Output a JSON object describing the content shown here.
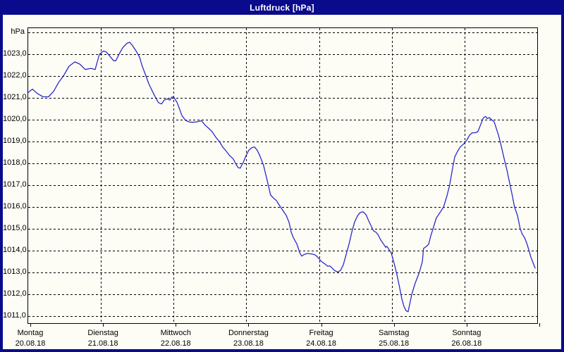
{
  "window": {
    "title": "Luftdruck [hPa]",
    "title_bar_color": "#0a0a8c",
    "frame_color": "#0a0a8c",
    "background_color": "#fdfdf6"
  },
  "chart_data": {
    "type": "line",
    "title": "Luftdruck [hPa]",
    "grid": "dashed",
    "legend_position": "none",
    "line_color": "#2a2ac8",
    "y_axis": {
      "unit_label": "hPa",
      "min": 1010.6,
      "max": 1024.2,
      "grid_step": 1,
      "ticks": [
        {
          "value": 1024,
          "label": "hPa"
        },
        {
          "value": 1023,
          "label": "1023,0"
        },
        {
          "value": 1022,
          "label": "1022,0"
        },
        {
          "value": 1021,
          "label": "1021,0"
        },
        {
          "value": 1020,
          "label": "1020,0"
        },
        {
          "value": 1019,
          "label": "1019,0"
        },
        {
          "value": 1018,
          "label": "1018,0"
        },
        {
          "value": 1017,
          "label": "1017,0"
        },
        {
          "value": 1016,
          "label": "1016,0"
        },
        {
          "value": 1015,
          "label": "1015,0"
        },
        {
          "value": 1014,
          "label": "1014,0"
        },
        {
          "value": 1013,
          "label": "1013,0"
        },
        {
          "value": 1012,
          "label": "1012,0"
        },
        {
          "value": 1011,
          "label": "1011,0"
        }
      ]
    },
    "x_axis": {
      "hours_total": 168,
      "days": [
        {
          "name": "Montag",
          "date": "20.08.18"
        },
        {
          "name": "Dienstag",
          "date": "21.08.18"
        },
        {
          "name": "Mittwoch",
          "date": "22.08.18"
        },
        {
          "name": "Donnerstag",
          "date": "23.08.18"
        },
        {
          "name": "Freitag",
          "date": "24.08.18"
        },
        {
          "name": "Samstag",
          "date": "25.08.18"
        },
        {
          "name": "Sonntag",
          "date": "26.08.18"
        }
      ]
    },
    "series": [
      {
        "name": "Luftdruck",
        "unit": "hPa",
        "points_format": [
          "hours_since_monday_00",
          "pressure_hpa"
        ],
        "points": [
          [
            0,
            1021.25
          ],
          [
            1.4,
            1021.4
          ],
          [
            3,
            1021.2
          ],
          [
            4.9,
            1021.05
          ],
          [
            6.7,
            1021.05
          ],
          [
            8.4,
            1021.3
          ],
          [
            10,
            1021.7
          ],
          [
            11.6,
            1022.0
          ],
          [
            13.5,
            1022.45
          ],
          [
            15.4,
            1022.65
          ],
          [
            17,
            1022.55
          ],
          [
            18.8,
            1022.3
          ],
          [
            20.7,
            1022.35
          ],
          [
            22.1,
            1022.3
          ],
          [
            23.5,
            1023.0
          ],
          [
            24.9,
            1023.15
          ],
          [
            25.8,
            1023.1
          ],
          [
            27,
            1022.9
          ],
          [
            28.2,
            1022.7
          ],
          [
            28.9,
            1022.7
          ],
          [
            30,
            1023.0
          ],
          [
            31.2,
            1023.3
          ],
          [
            32.6,
            1023.5
          ],
          [
            33.5,
            1023.55
          ],
          [
            34.4,
            1023.4
          ],
          [
            35.6,
            1023.15
          ],
          [
            36.8,
            1022.85
          ],
          [
            37.5,
            1022.5
          ],
          [
            38.6,
            1022.1
          ],
          [
            39.8,
            1021.65
          ],
          [
            41,
            1021.3
          ],
          [
            42.1,
            1021.0
          ],
          [
            43,
            1020.78
          ],
          [
            44,
            1020.72
          ],
          [
            44.9,
            1020.9
          ],
          [
            45.8,
            1020.95
          ],
          [
            46.8,
            1020.9
          ],
          [
            47.5,
            1021.05
          ],
          [
            48.2,
            1021.0
          ],
          [
            49.1,
            1020.8
          ],
          [
            49.8,
            1020.55
          ],
          [
            50.7,
            1020.2
          ],
          [
            51.9,
            1019.97
          ],
          [
            53.1,
            1019.9
          ],
          [
            54.2,
            1019.88
          ],
          [
            55.6,
            1019.9
          ],
          [
            57.2,
            1019.95
          ],
          [
            58.4,
            1019.75
          ],
          [
            59.6,
            1019.6
          ],
          [
            60.7,
            1019.45
          ],
          [
            61.9,
            1019.2
          ],
          [
            63.1,
            1019.0
          ],
          [
            64.2,
            1018.75
          ],
          [
            65.4,
            1018.55
          ],
          [
            66.5,
            1018.35
          ],
          [
            67.7,
            1018.2
          ],
          [
            68.6,
            1017.95
          ],
          [
            69.3,
            1017.8
          ],
          [
            70,
            1017.78
          ],
          [
            71,
            1018.05
          ],
          [
            71.9,
            1018.35
          ],
          [
            72.8,
            1018.6
          ],
          [
            73.8,
            1018.72
          ],
          [
            74.7,
            1018.75
          ],
          [
            75.6,
            1018.6
          ],
          [
            76.6,
            1018.3
          ],
          [
            77.7,
            1017.9
          ],
          [
            78.9,
            1017.2
          ],
          [
            80,
            1016.55
          ],
          [
            81,
            1016.4
          ],
          [
            81.9,
            1016.3
          ],
          [
            82.8,
            1016.1
          ],
          [
            84,
            1015.85
          ],
          [
            85.2,
            1015.6
          ],
          [
            86.1,
            1015.3
          ],
          [
            86.8,
            1014.85
          ],
          [
            87.5,
            1014.6
          ],
          [
            88.7,
            1014.3
          ],
          [
            89.6,
            1013.9
          ],
          [
            90.3,
            1013.75
          ],
          [
            91,
            1013.82
          ],
          [
            92.1,
            1013.87
          ],
          [
            93.3,
            1013.85
          ],
          [
            94.5,
            1013.82
          ],
          [
            95.2,
            1013.75
          ],
          [
            95.9,
            1013.65
          ],
          [
            96.8,
            1013.5
          ],
          [
            98,
            1013.38
          ],
          [
            98.9,
            1013.28
          ],
          [
            99.6,
            1013.3
          ],
          [
            100.3,
            1013.2
          ],
          [
            101.2,
            1013.08
          ],
          [
            102.2,
            1013.02
          ],
          [
            103.1,
            1013.1
          ],
          [
            104,
            1013.35
          ],
          [
            104.9,
            1013.8
          ],
          [
            105.9,
            1014.3
          ],
          [
            106.8,
            1014.85
          ],
          [
            107.7,
            1015.3
          ],
          [
            108.7,
            1015.6
          ],
          [
            109.6,
            1015.75
          ],
          [
            110.5,
            1015.78
          ],
          [
            111.5,
            1015.65
          ],
          [
            112.4,
            1015.35
          ],
          [
            113.3,
            1015.1
          ],
          [
            114,
            1014.9
          ],
          [
            114.7,
            1014.85
          ],
          [
            115.4,
            1014.75
          ],
          [
            116.3,
            1014.5
          ],
          [
            117.3,
            1014.3
          ],
          [
            118,
            1014.15
          ],
          [
            118.4,
            1014.2
          ],
          [
            119.1,
            1014.05
          ],
          [
            119.8,
            1013.9
          ],
          [
            120.8,
            1013.4
          ],
          [
            121.7,
            1012.9
          ],
          [
            122.6,
            1012.3
          ],
          [
            123.3,
            1011.8
          ],
          [
            124,
            1011.45
          ],
          [
            124.7,
            1011.25
          ],
          [
            125.4,
            1011.2
          ],
          [
            126.6,
            1012.0
          ],
          [
            127.7,
            1012.5
          ],
          [
            129.1,
            1013.0
          ],
          [
            130.1,
            1013.5
          ],
          [
            130.5,
            1014.1
          ],
          [
            131.5,
            1014.2
          ],
          [
            132.2,
            1014.3
          ],
          [
            132.9,
            1014.7
          ],
          [
            133.6,
            1015.0
          ],
          [
            134.7,
            1015.5
          ],
          [
            135.7,
            1015.7
          ],
          [
            137.1,
            1016.0
          ],
          [
            138.2,
            1016.5
          ],
          [
            139.1,
            1017.0
          ],
          [
            140.1,
            1017.8
          ],
          [
            140.8,
            1018.3
          ],
          [
            141.7,
            1018.55
          ],
          [
            142.6,
            1018.75
          ],
          [
            143.8,
            1018.9
          ],
          [
            144.7,
            1019.05
          ],
          [
            145.7,
            1019.3
          ],
          [
            146.6,
            1019.4
          ],
          [
            147.5,
            1019.4
          ],
          [
            148.4,
            1019.45
          ],
          [
            149.4,
            1019.8
          ],
          [
            150.3,
            1020.1
          ],
          [
            151,
            1020.15
          ],
          [
            151.5,
            1020.05
          ],
          [
            152.2,
            1020.1
          ],
          [
            152.9,
            1020.0
          ],
          [
            153.8,
            1019.9
          ],
          [
            154.5,
            1019.6
          ],
          [
            155.2,
            1019.3
          ],
          [
            156.1,
            1018.8
          ],
          [
            157.1,
            1018.2
          ],
          [
            158,
            1017.7
          ],
          [
            158.9,
            1017.1
          ],
          [
            159.8,
            1016.5
          ],
          [
            160.5,
            1016.0
          ],
          [
            161.5,
            1015.6
          ],
          [
            162.4,
            1015.0
          ],
          [
            163.1,
            1014.75
          ],
          [
            163.8,
            1014.6
          ],
          [
            164.5,
            1014.35
          ],
          [
            165.2,
            1014.05
          ],
          [
            165.9,
            1013.7
          ],
          [
            166.6,
            1013.45
          ],
          [
            167.3,
            1013.2
          ]
        ]
      }
    ]
  }
}
